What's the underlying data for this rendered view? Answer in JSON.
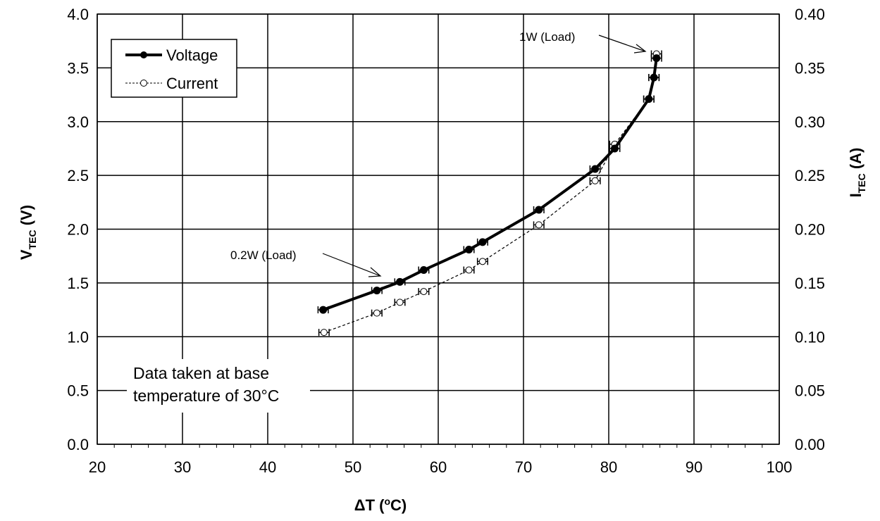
{
  "chart_data": {
    "type": "line",
    "title": "",
    "xlabel": {
      "main": "ΔT (",
      "sup": "o",
      "tail": "C)"
    },
    "ylabel_left": {
      "main": "V",
      "sub": "TEC",
      "tail": " (V)"
    },
    "ylabel_right": {
      "main": "I",
      "sub": "TEC",
      "tail": " (A)"
    },
    "xlim": [
      20,
      100
    ],
    "ylim_left": [
      0,
      4
    ],
    "ylim_right": [
      0,
      0.4
    ],
    "grid": true,
    "x_ticks": [
      "20",
      "30",
      "40",
      "50",
      "60",
      "70",
      "80",
      "90",
      "100"
    ],
    "y_left_ticks": [
      "0.0",
      "0.5",
      "1.0",
      "1.5",
      "2.0",
      "2.5",
      "3.0",
      "3.5",
      "4.0"
    ],
    "y_right_ticks": [
      "0.00",
      "0.05",
      "0.10",
      "0.15",
      "0.20",
      "0.25",
      "0.30",
      "0.35",
      "0.40"
    ],
    "legend_position": "top-left",
    "series": [
      {
        "name": "Voltage",
        "axis": "left",
        "style": "solid-thick-filled-markers",
        "x": [
          46.5,
          52.8,
          55.5,
          58.3,
          63.6,
          65.2,
          71.8,
          78.4,
          80.7,
          84.7,
          85.3,
          85.6
        ],
        "y": [
          1.25,
          1.43,
          1.51,
          1.62,
          1.81,
          1.88,
          2.18,
          2.56,
          2.75,
          3.21,
          3.41,
          3.59
        ],
        "x_error": 0.6
      },
      {
        "name": "Current",
        "axis": "right",
        "style": "dashed-open-markers",
        "x": [
          46.6,
          52.8,
          55.5,
          58.3,
          63.6,
          65.2,
          71.8,
          78.4,
          80.7,
          84.7,
          85.3,
          85.6
        ],
        "y": [
          0.104,
          0.122,
          0.132,
          0.142,
          0.162,
          0.17,
          0.204,
          0.245,
          0.279,
          0.321,
          0.341,
          0.363
        ],
        "x_error": 0.6
      }
    ],
    "annotations": [
      {
        "text": "1W (Load)"
      },
      {
        "text": "0.2W (Load)"
      }
    ],
    "note_lines": [
      "Data taken at base",
      "temperature of 30°C"
    ]
  }
}
